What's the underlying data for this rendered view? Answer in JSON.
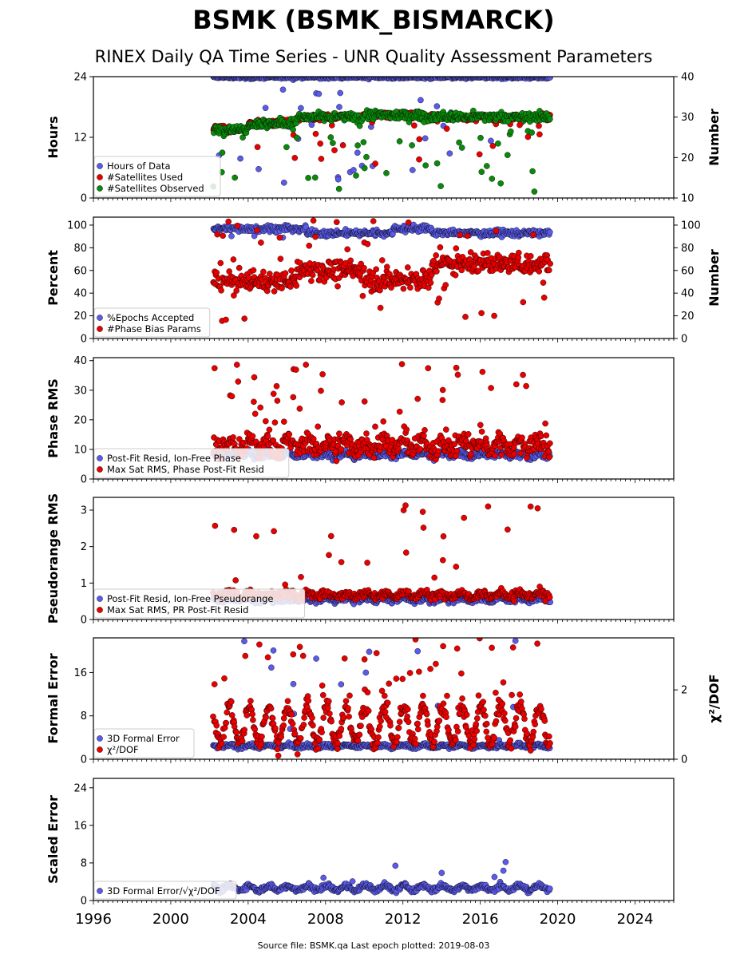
{
  "title": "BSMK (BSMK_BISMARCK)",
  "subtitle": "RINEX Daily QA Time Series - UNR Quality Assessment Parameters",
  "footer": "Source file: BSMK.qa Last epoch plotted: 2019-08-03",
  "colors": {
    "blue": "#5b5bea",
    "red": "#e80000",
    "green": "#0a8a0a"
  },
  "chart_data": [
    {
      "type": "scatter",
      "ylabel": "Hours",
      "ylabel_right": "Number",
      "xlim": [
        1996,
        2026
      ],
      "ylim": [
        0,
        24
      ],
      "ylim_right": [
        10,
        40
      ],
      "yticks": [
        "0",
        "12",
        "24"
      ],
      "yticks_right": [
        "10",
        "20",
        "30",
        "40"
      ],
      "legend": "lower-left",
      "series": [
        {
          "name": "Hours of Data",
          "color": "blue",
          "axis": "left",
          "base": 23.9,
          "spread": 0.25,
          "outliers": 0.08,
          "outlier_min": 3,
          "outlier_max": 22
        },
        {
          "name": "#Satellites Used",
          "color": "red",
          "axis": "right",
          "segments": [
            [
              2002.2,
              2004.0,
              27.0
            ],
            [
              2004.0,
              2006.5,
              28.5
            ],
            [
              2006.5,
              2010.0,
              30.0
            ],
            [
              2010.0,
              2013.0,
              30.5
            ],
            [
              2013.0,
              2019.6,
              30.0
            ]
          ],
          "spread": 0.6,
          "outliers": 0.04,
          "outlier_min": 18,
          "outlier_max": 29
        },
        {
          "name": "#Satellites Observed",
          "color": "green",
          "axis": "right",
          "segments": [
            [
              2002.2,
              2004.0,
              27.0
            ],
            [
              2004.0,
              2006.5,
              28.5
            ],
            [
              2006.5,
              2010.0,
              30.0
            ],
            [
              2010.0,
              2013.0,
              30.5
            ],
            [
              2013.0,
              2019.6,
              30.0
            ]
          ],
          "spread": 0.8,
          "outliers": 0.06,
          "outlier_min": 11,
          "outlier_max": 28
        }
      ]
    },
    {
      "type": "scatter",
      "ylabel": "Percent",
      "ylabel_right": "Number",
      "xlim": [
        1996,
        2026
      ],
      "ylim": [
        0,
        107
      ],
      "ylim_right": [
        0,
        107
      ],
      "yticks": [
        "0",
        "20",
        "40",
        "60",
        "80",
        "100"
      ],
      "yticks_right": [
        "0",
        "20",
        "40",
        "60",
        "80",
        "100"
      ],
      "legend": "lower-left",
      "series": [
        {
          "name": "%Epochs Accepted",
          "color": "blue",
          "axis": "left",
          "segments": [
            [
              2002.2,
              2007.0,
              97
            ],
            [
              2007.0,
              2011.5,
              93
            ],
            [
              2011.5,
              2013.5,
              97
            ],
            [
              2013.5,
              2019.6,
              93
            ]
          ],
          "spread": 2.0,
          "outliers": 0.01,
          "outlier_min": 85,
          "outlier_max": 96
        },
        {
          "name": "#Phase Bias Params",
          "color": "red",
          "axis": "right",
          "segments": [
            [
              2002.2,
              2006.5,
              51
            ],
            [
              2006.5,
              2010.0,
              60
            ],
            [
              2010.0,
              2013.5,
              52
            ],
            [
              2013.5,
              2019.6,
              66
            ]
          ],
          "spread": 6.0,
          "outliers": 0.1,
          "outlier_min": 15,
          "outlier_max": 105
        }
      ]
    },
    {
      "type": "scatter",
      "ylabel": "Phase RMS",
      "xlim": [
        1996,
        2026
      ],
      "ylim": [
        0,
        41
      ],
      "yticks": [
        "0",
        "10",
        "20",
        "30",
        "40"
      ],
      "legend": "lower-left",
      "series": [
        {
          "name": "Post-Fit Resid, Ion-Free Phase",
          "color": "blue",
          "axis": "left",
          "base": 8.2,
          "spread": 0.8,
          "seasonal": 0.6,
          "outliers": 0.0,
          "outlier_min": 3,
          "outlier_max": 10
        },
        {
          "name": "Max Sat RMS, Phase Post-Fit Resid",
          "color": "red",
          "axis": "left",
          "base": 11.5,
          "spread": 2.5,
          "seasonal": 1.5,
          "outliers": 0.1,
          "outlier_min": 14,
          "outlier_max": 39
        }
      ]
    },
    {
      "type": "scatter",
      "ylabel": "Pseudorange RMS",
      "xlim": [
        1996,
        2026
      ],
      "ylim": [
        0,
        3.35
      ],
      "yticks": [
        "0",
        "1",
        "2",
        "3"
      ],
      "legend": "lower-left",
      "series": [
        {
          "name": "Post-Fit Resid, Ion-Free Pseudorange",
          "color": "blue",
          "axis": "left",
          "base": 0.55,
          "spread": 0.06,
          "seasonal": 0.04,
          "outliers": 0.0,
          "outlier_min": 0.5,
          "outlier_max": 1.1
        },
        {
          "name": "Max Sat RMS, PR Post-Fit Resid",
          "color": "red",
          "axis": "left",
          "base": 0.68,
          "spread": 0.08,
          "seasonal": 0.05,
          "outliers": 0.05,
          "outlier_min": 0.9,
          "outlier_max": 3.2
        }
      ]
    },
    {
      "type": "scatter",
      "ylabel": "Formal Error",
      "ylabel_right": "χ²/DOF",
      "xlim": [
        1996,
        2026
      ],
      "ylim": [
        0,
        22.4
      ],
      "ylim_right": [
        0,
        3.5
      ],
      "yticks": [
        "0",
        "8",
        "16"
      ],
      "yticks_right": [
        "0",
        "2"
      ],
      "legend": "lower-left",
      "series": [
        {
          "name": "3D Formal Error",
          "color": "blue",
          "axis": "left",
          "base": 2.4,
          "spread": 0.25,
          "seasonal": 0.2,
          "outliers": 0.02,
          "outlier_min": 3,
          "outlier_max": 22
        },
        {
          "name": "χ²/DOF",
          "color": "red",
          "axis": "right",
          "base": 1.0,
          "spread": 0.18,
          "seasonal": 0.55,
          "outliers": 0.06,
          "outlier_min": 1.8,
          "outlier_max": 3.5
        }
      ]
    },
    {
      "type": "scatter",
      "ylabel": "Scaled Error",
      "xlim": [
        1996,
        2026
      ],
      "ylim": [
        0,
        26
      ],
      "yticks": [
        "0",
        "8",
        "16",
        "24"
      ],
      "legend": "lower-left",
      "series": [
        {
          "name": "3D Formal Error/√χ²/DOF",
          "color": "blue",
          "axis": "left",
          "base": 2.7,
          "spread": 0.4,
          "seasonal": 0.5,
          "outliers": 0.02,
          "outlier_min": 4,
          "outlier_max": 8.5
        }
      ]
    }
  ],
  "x_ticks": [
    "1996",
    "2000",
    "2004",
    "2008",
    "2012",
    "2016",
    "2020",
    "2024"
  ]
}
